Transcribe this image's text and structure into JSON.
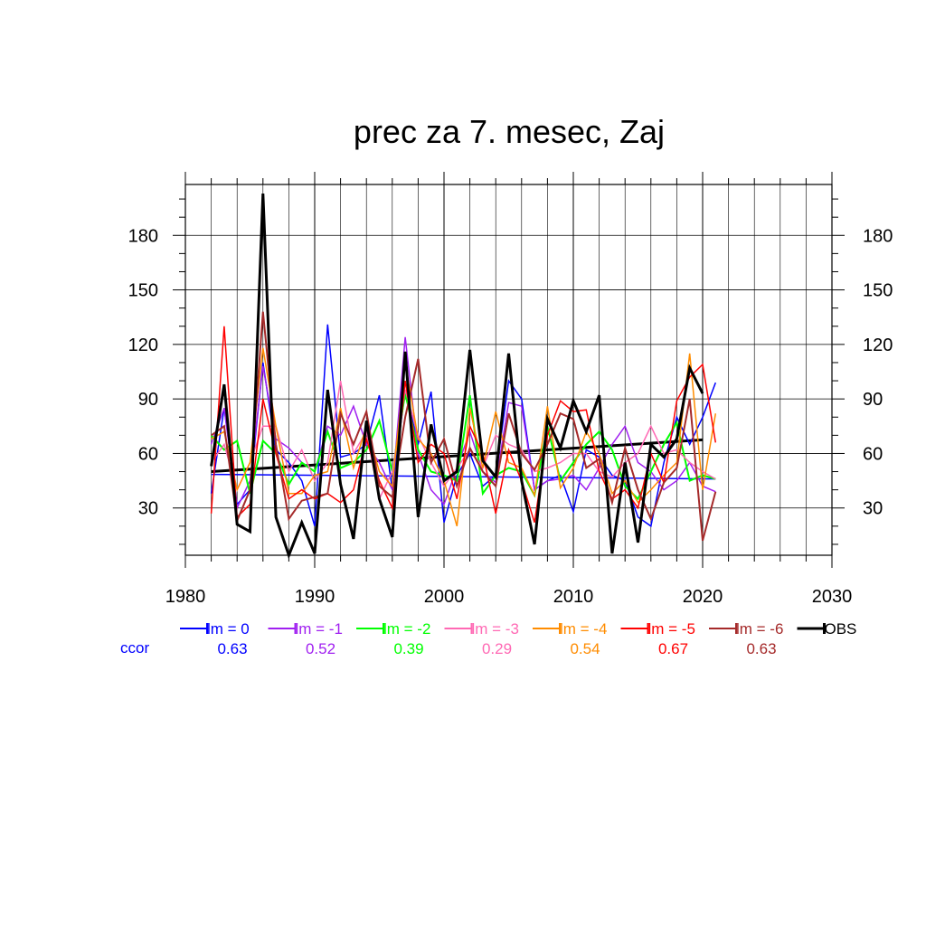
{
  "chart_data": {
    "type": "line",
    "title": "prec za 7. mesec, Zaj",
    "xlabel": "",
    "ylabel": "",
    "xlim": [
      1980,
      2030
    ],
    "ylim": [
      4,
      208
    ],
    "x_ticks": [
      1980,
      1990,
      2000,
      2010,
      2020,
      2030
    ],
    "y_ticks": [
      30,
      60,
      90,
      120,
      150,
      180
    ],
    "grid": true,
    "ccor_label": "ccor",
    "legend": [
      {
        "label": "lm = 0",
        "ccor": "0.63",
        "color": "#0000ff"
      },
      {
        "label": "lm = -1",
        "ccor": "0.52",
        "color": "#a020f0"
      },
      {
        "label": "lm = -2",
        "ccor": "0.39",
        "color": "#00ff00"
      },
      {
        "label": "lm = -3",
        "ccor": "0.29",
        "color": "#ff69b4"
      },
      {
        "label": "lm = -4",
        "ccor": "0.54",
        "color": "#ff8c00"
      },
      {
        "label": "lm = -5",
        "ccor": "0.67",
        "color": "#ff0000"
      },
      {
        "label": "lm = -6",
        "ccor": "0.63",
        "color": "#a52a2a"
      },
      {
        "label": "OBS",
        "ccor": "",
        "color": "#000000"
      }
    ],
    "x": [
      1982,
      1983,
      1984,
      1985,
      1986,
      1987,
      1988,
      1989,
      1990,
      1991,
      1992,
      1993,
      1994,
      1995,
      1996,
      1997,
      1998,
      1999,
      2000,
      2001,
      2002,
      2003,
      2004,
      2005,
      2006,
      2007,
      2008,
      2009,
      2010,
      2011,
      2012,
      2013,
      2014,
      2015,
      2016,
      2017,
      2018,
      2019,
      2020,
      2021
    ],
    "series": [
      {
        "name": "lm = 0",
        "color": "#0000ff",
        "width": 1.5,
        "values": [
          38,
          85,
          32,
          40,
          110,
          62,
          55,
          45,
          20,
          131,
          58,
          60,
          65,
          92,
          40,
          95,
          65,
          94,
          22,
          48,
          60,
          42,
          48,
          100,
          90,
          40,
          45,
          48,
          28,
          62,
          58,
          48,
          45,
          25,
          20,
          55,
          80,
          65,
          80,
          99
        ]
      },
      {
        "name": "lm = -1",
        "color": "#a020f0",
        "width": 1.5,
        "values": [
          65,
          85,
          30,
          45,
          108,
          68,
          63,
          55,
          50,
          75,
          70,
          86,
          65,
          55,
          40,
          124,
          60,
          40,
          32,
          52,
          72,
          50,
          44,
          88,
          86,
          40,
          45,
          46,
          48,
          40,
          52,
          65,
          75,
          55,
          50,
          40,
          45,
          55,
          42,
          39
        ]
      },
      {
        "name": "lm = -2",
        "color": "#00ff00",
        "width": 2,
        "values": [
          70,
          62,
          67,
          38,
          67,
          60,
          43,
          55,
          50,
          72,
          52,
          55,
          62,
          78,
          50,
          93,
          62,
          50,
          48,
          45,
          92,
          38,
          48,
          52,
          50,
          37,
          75,
          45,
          55,
          65,
          72,
          62,
          42,
          35,
          50,
          65,
          77,
          45,
          48,
          46
        ]
      },
      {
        "name": "lm = -3",
        "color": "#ff69b4",
        "width": 1.5,
        "values": [
          55,
          65,
          40,
          55,
          75,
          75,
          50,
          62,
          45,
          55,
          100,
          60,
          72,
          35,
          50,
          95,
          70,
          55,
          42,
          52,
          62,
          52,
          70,
          65,
          62,
          50,
          52,
          55,
          60,
          60,
          50,
          47,
          55,
          60,
          75,
          60,
          62,
          55,
          50,
          46
        ]
      },
      {
        "name": "lm = -4",
        "color": "#ff8c00",
        "width": 1.5,
        "values": [
          68,
          72,
          40,
          55,
          118,
          75,
          38,
          38,
          48,
          50,
          85,
          52,
          75,
          50,
          42,
          110,
          68,
          60,
          45,
          20,
          85,
          52,
          83,
          55,
          52,
          37,
          86,
          41,
          52,
          72,
          60,
          38,
          45,
          33,
          40,
          48,
          55,
          115,
          40,
          82
        ]
      },
      {
        "name": "lm = -5",
        "color": "#ff0000",
        "width": 1.5,
        "values": [
          27,
          130,
          25,
          32,
          90,
          60,
          35,
          40,
          35,
          38,
          33,
          40,
          68,
          45,
          30,
          100,
          55,
          65,
          60,
          35,
          75,
          60,
          27,
          62,
          45,
          22,
          70,
          89,
          83,
          84,
          50,
          35,
          40,
          30,
          60,
          44,
          89,
          102,
          109,
          66
        ]
      },
      {
        "name": "lm = -6",
        "color": "#a52a2a",
        "width": 2,
        "values": [
          70,
          75,
          23,
          40,
          138,
          65,
          24,
          34,
          36,
          38,
          82,
          65,
          83,
          42,
          36,
          80,
          112,
          55,
          68,
          42,
          63,
          50,
          42,
          82,
          60,
          51,
          65,
          82,
          79,
          52,
          57,
          33,
          63,
          40,
          24,
          44,
          52,
          90,
          12,
          39
        ]
      },
      {
        "name": "OBS",
        "color": "#000000",
        "width": 3,
        "values": [
          53,
          98,
          21,
          17,
          203,
          25,
          4,
          22,
          5,
          95,
          43,
          13,
          78,
          35,
          14,
          116,
          25,
          76,
          45,
          50,
          117,
          56,
          47,
          115,
          45,
          10,
          79,
          63,
          89,
          72,
          92,
          5,
          55,
          11,
          65,
          58,
          68,
          107,
          93,
          null
        ]
      }
    ],
    "trend_lines": [
      {
        "name": "trend lm = 0",
        "color": "#0000ff",
        "x": [
          1982,
          2021
        ],
        "values": [
          48.5,
          46
        ]
      },
      {
        "name": "trend OBS",
        "color": "#000000",
        "x": [
          1982,
          2020
        ],
        "values": [
          50,
          67.5
        ]
      }
    ]
  }
}
